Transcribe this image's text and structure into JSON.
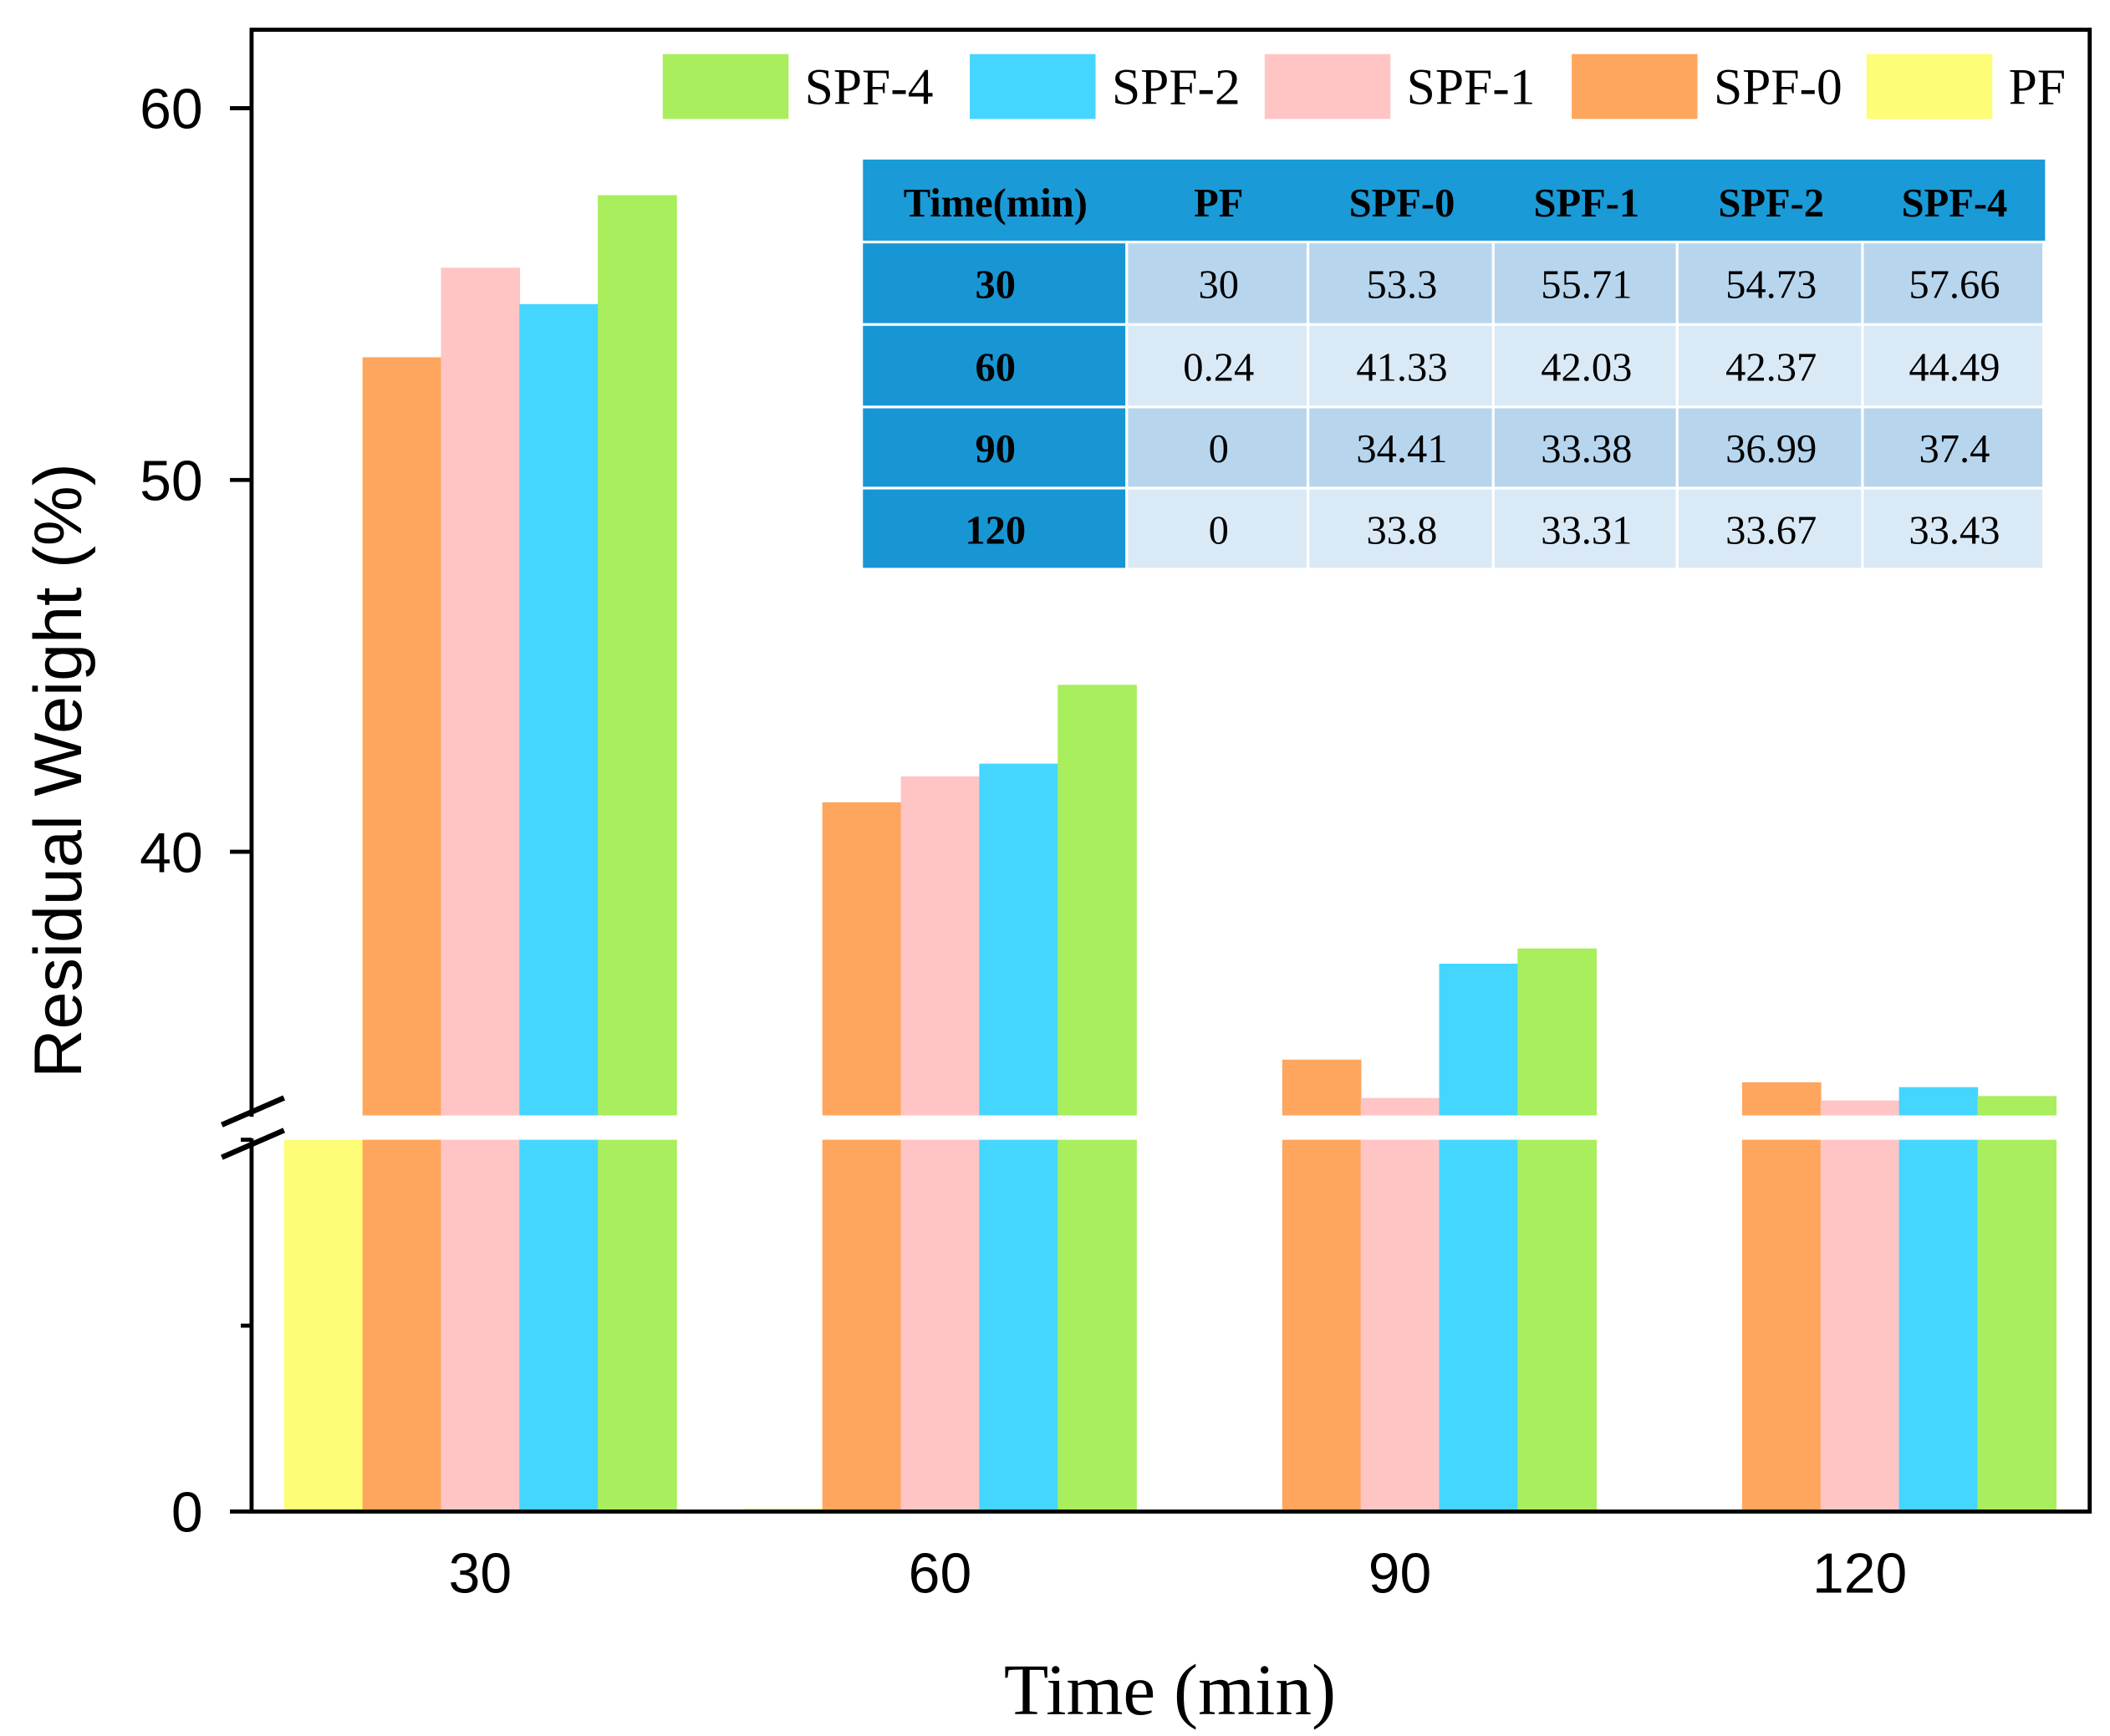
{
  "chart_data": {
    "type": "bar",
    "title": "",
    "xlabel": "Time (min)",
    "ylabel": "Residual Weight (%)",
    "categories": [
      "30",
      "60",
      "90",
      "120"
    ],
    "y_break": {
      "lower_range": [
        0,
        30
      ],
      "upper_range": [
        33,
        62
      ]
    },
    "y_tick_labels": [
      "0",
      "40",
      "50",
      "60"
    ],
    "y_ticks": [
      0,
      15,
      30,
      40,
      50,
      60
    ],
    "legend_position": "top-right",
    "series": [
      {
        "name": "PF",
        "color": "#fdfd78",
        "values": [
          30,
          0.24,
          0,
          0
        ]
      },
      {
        "name": "SPF-0",
        "color": "#ffa65e",
        "values": [
          53.3,
          41.33,
          34.41,
          33.8
        ]
      },
      {
        "name": "SPF-1",
        "color": "#ffc5c5",
        "values": [
          55.71,
          42.03,
          33.38,
          33.31
        ]
      },
      {
        "name": "SPF-2",
        "color": "#45d6ff",
        "values": [
          54.73,
          42.37,
          36.99,
          33.67
        ]
      },
      {
        "name": "SPF-4",
        "color": "#a9ee5c",
        "values": [
          57.66,
          44.49,
          37.4,
          33.43
        ]
      }
    ],
    "legend_order": [
      "SPF-4",
      "SPF-2",
      "SPF-1",
      "SPF-0",
      "PF"
    ],
    "inset_table": {
      "header": [
        "Time(min)",
        "PF",
        "SPF-0",
        "SPF-1",
        "SPF-2",
        "SPF-4"
      ],
      "rows": [
        [
          "30",
          "30",
          "53.3",
          "55.71",
          "54.73",
          "57.66"
        ],
        [
          "60",
          "0.24",
          "41.33",
          "42.03",
          "42.37",
          "44.49"
        ],
        [
          "90",
          "0",
          "34.41",
          "33.38",
          "36.99",
          "37.4"
        ],
        [
          "120",
          "0",
          "33.8",
          "33.31",
          "33.67",
          "33.43"
        ]
      ],
      "colors": {
        "header": "#1a9ad6",
        "row_head": "#1896d4",
        "cell_dark": "#b7d6ee",
        "cell_light": "#dae9f6"
      }
    }
  }
}
